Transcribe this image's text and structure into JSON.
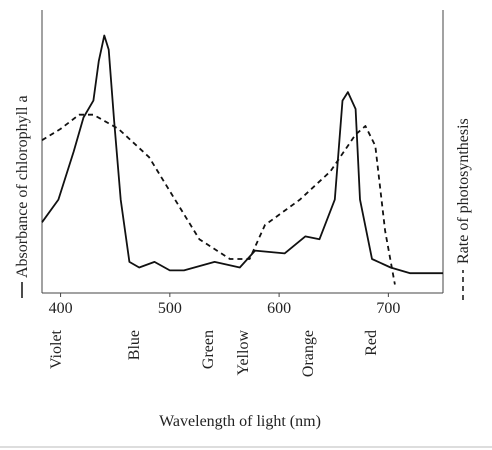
{
  "chart_data": {
    "type": "line",
    "xlabel": "Wavelength of light (nm)",
    "xlim": [
      383,
      750
    ],
    "xticks": [
      400,
      500,
      600,
      700
    ],
    "ylim": [
      0,
      100
    ],
    "color_bands": [
      "Violet",
      "Blue",
      "Green",
      "Yellow",
      "Orange",
      "Red"
    ],
    "series": [
      {
        "name": "Absorbance of chlorophyll a",
        "color": "#111111",
        "dash": "solid",
        "x": [
          383,
          398,
          412,
          421,
          430,
          435,
          440,
          444,
          449,
          455,
          463,
          472,
          486,
          500,
          513,
          541,
          564,
          578,
          605,
          624,
          637,
          651,
          658,
          663,
          670,
          674,
          685,
          702,
          720,
          750
        ],
        "values": [
          25,
          33,
          50,
          62,
          68,
          82,
          91,
          86,
          61,
          33,
          11,
          9,
          11,
          8,
          8,
          11,
          9,
          15,
          14,
          20,
          19,
          33,
          68,
          71,
          65,
          33,
          12,
          9,
          7,
          7
        ]
      },
      {
        "name": "Rate of photosynthesis",
        "color": "#111111",
        "dash": "dashed",
        "x": [
          383,
          400,
          417,
          430,
          453,
          481,
          500,
          527,
          555,
          573,
          587,
          619,
          647,
          670,
          679,
          688,
          697,
          706
        ],
        "values": [
          54,
          58,
          63,
          63,
          58,
          48,
          36,
          19,
          12,
          12,
          24,
          33,
          43,
          56,
          59,
          52,
          22,
          3
        ]
      }
    ]
  }
}
